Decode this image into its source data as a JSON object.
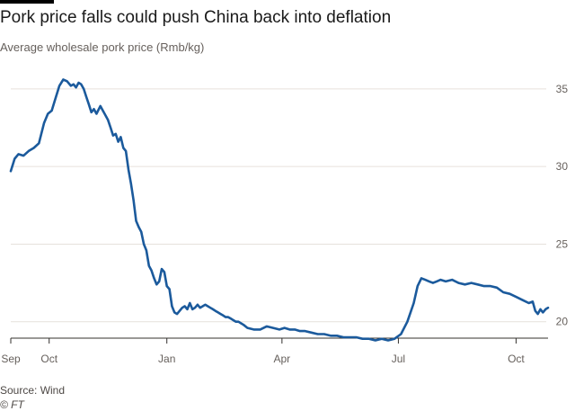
{
  "title": "Pork price falls could push China back into deflation",
  "subtitle": "Average wholesale pork price (Rmb/kg)",
  "source": "Source: Wind",
  "credit": "© FT",
  "colors": {
    "line": "#1b5a9c",
    "grid": "#e6e1dc",
    "axis": "#33302e",
    "text": "#66605c",
    "brand_bar": "#000000"
  },
  "chart_data": {
    "type": "line",
    "title": "Pork price falls could push China back into deflation",
    "ylabel": "Average wholesale pork price (Rmb/kg)",
    "xlabel": "",
    "x_unit": "days since Sep 1",
    "xlim": [
      0,
      420
    ],
    "ylim": [
      19,
      36.5
    ],
    "y_ticks": [
      20,
      25,
      30,
      35
    ],
    "x_ticks": [
      {
        "label": "Sep",
        "day": 0
      },
      {
        "label": "Oct",
        "day": 30
      },
      {
        "label": "Jan",
        "day": 122
      },
      {
        "label": "Apr",
        "day": 212
      },
      {
        "label": "Jul",
        "day": 303
      },
      {
        "label": "Oct",
        "day": 395
      }
    ],
    "grid": true,
    "series": [
      {
        "name": "Average wholesale pork price",
        "x": [
          0,
          3,
          6,
          10,
          14,
          18,
          22,
          26,
          29,
          32,
          35,
          38,
          41,
          44,
          47,
          49,
          51,
          53,
          55,
          57,
          59,
          61,
          63,
          65,
          67,
          70,
          72,
          74,
          76,
          78,
          80,
          82,
          84,
          86,
          88,
          90,
          92,
          94,
          96,
          98,
          100,
          102,
          104,
          106,
          108,
          110,
          112,
          114,
          116,
          118,
          120,
          122,
          124,
          126,
          128,
          130,
          132,
          134,
          136,
          138,
          140,
          142,
          144,
          146,
          148,
          150,
          152,
          154,
          156,
          158,
          160,
          162,
          164,
          166,
          168,
          170,
          172,
          174,
          176,
          178,
          180,
          182,
          185,
          190,
          195,
          200,
          205,
          210,
          214,
          218,
          222,
          226,
          230,
          235,
          240,
          245,
          250,
          255,
          260,
          265,
          270,
          275,
          280,
          285,
          290,
          295,
          300,
          305,
          310,
          315,
          318,
          321,
          324,
          327,
          330,
          333,
          336,
          340,
          345,
          350,
          355,
          360,
          365,
          370,
          375,
          380,
          385,
          390,
          395,
          400,
          405,
          408,
          410,
          412,
          414,
          416,
          418,
          420
        ],
        "values": [
          29.7,
          30.5,
          30.8,
          30.7,
          31.0,
          31.2,
          31.5,
          32.8,
          33.4,
          33.6,
          34.4,
          35.2,
          35.6,
          35.5,
          35.2,
          35.3,
          35.1,
          35.4,
          35.3,
          35.0,
          34.5,
          34.0,
          33.5,
          33.7,
          33.4,
          33.9,
          33.6,
          33.3,
          33.0,
          32.5,
          32.0,
          32.1,
          31.6,
          31.9,
          31.2,
          31.0,
          29.8,
          28.9,
          27.8,
          26.5,
          26.1,
          25.8,
          25.0,
          24.6,
          23.6,
          23.3,
          22.8,
          22.4,
          22.6,
          23.4,
          23.2,
          22.3,
          22.1,
          21.0,
          20.6,
          20.5,
          20.7,
          20.9,
          21.0,
          20.8,
          21.2,
          20.8,
          20.9,
          21.1,
          20.9,
          21.0,
          21.1,
          21.0,
          20.9,
          20.8,
          20.7,
          20.6,
          20.5,
          20.4,
          20.3,
          20.3,
          20.2,
          20.1,
          20.0,
          20.0,
          19.9,
          19.8,
          19.6,
          19.5,
          19.5,
          19.7,
          19.6,
          19.5,
          19.6,
          19.5,
          19.5,
          19.4,
          19.4,
          19.3,
          19.2,
          19.2,
          19.1,
          19.1,
          19.0,
          19.0,
          19.0,
          18.9,
          18.9,
          18.8,
          18.9,
          18.8,
          18.9,
          19.2,
          20.0,
          21.2,
          22.3,
          22.8,
          22.7,
          22.6,
          22.5,
          22.6,
          22.7,
          22.6,
          22.7,
          22.5,
          22.4,
          22.5,
          22.4,
          22.3,
          22.3,
          22.2,
          21.9,
          21.8,
          21.6,
          21.4,
          21.2,
          21.3,
          20.7,
          20.5,
          20.8,
          20.6,
          20.8,
          20.9
        ]
      }
    ]
  }
}
